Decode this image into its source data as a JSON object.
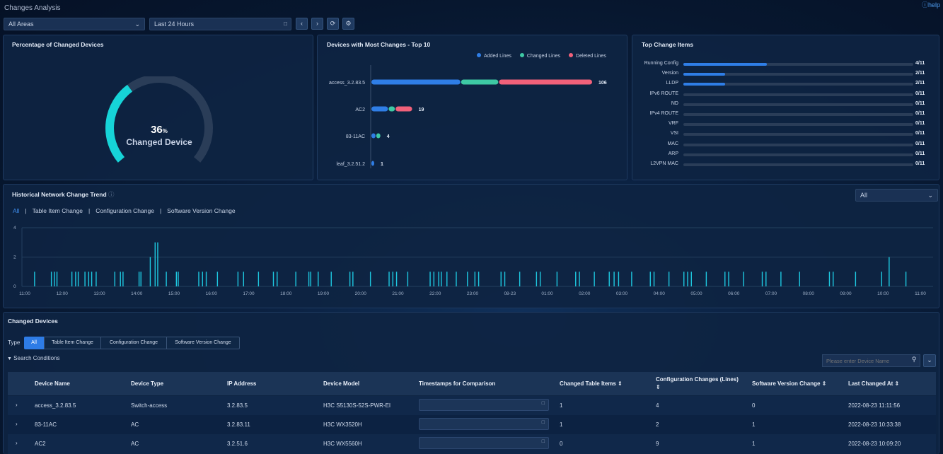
{
  "header": {
    "title": "Changes Analysis",
    "help_label": "help"
  },
  "filters": {
    "area": "All Areas",
    "range": "Last 24 Hours"
  },
  "panel_pct": {
    "title": "Percentage of Changed Devices",
    "value": "36",
    "unit": "%",
    "label": "Changed Device",
    "fraction": 0.36
  },
  "panel_top10": {
    "title": "Devices with Most Changes - Top 10",
    "legend": [
      "Added Lines",
      "Changed Lines",
      "Deleted Lines"
    ],
    "colors": [
      "#2f7ee6",
      "#3ec9a4",
      "#f1617a"
    ],
    "max": 106,
    "devices": [
      {
        "name": "access_3.2.83.5",
        "added": 43,
        "changed": 18,
        "deleted": 45,
        "total": "106"
      },
      {
        "name": "AC2",
        "added": 8,
        "changed": 3,
        "deleted": 8,
        "total": "19"
      },
      {
        "name": "83-11AC",
        "added": 2,
        "changed": 2,
        "deleted": 0,
        "total": "4"
      },
      {
        "name": "leaf_3.2.51.2",
        "added": 1,
        "changed": 0,
        "deleted": 0,
        "total": "1"
      }
    ]
  },
  "panel_items": {
    "title": "Top Change Items",
    "items": [
      {
        "name": "Running Config",
        "value": 4,
        "label": "4/11"
      },
      {
        "name": "Version",
        "value": 2,
        "label": "2/11"
      },
      {
        "name": "LLDP",
        "value": 2,
        "label": "2/11"
      },
      {
        "name": "IPv6 ROUTE",
        "value": 0,
        "label": "0/11"
      },
      {
        "name": "ND",
        "value": 0,
        "label": "0/11"
      },
      {
        "name": "IPv4 ROUTE",
        "value": 0,
        "label": "0/11"
      },
      {
        "name": "VRF",
        "value": 0,
        "label": "0/11"
      },
      {
        "name": "VSI",
        "value": 0,
        "label": "0/11"
      },
      {
        "name": "MAC",
        "value": 0,
        "label": "0/11"
      },
      {
        "name": "ARP",
        "value": 0,
        "label": "0/11"
      },
      {
        "name": "L2VPN MAC",
        "value": 0,
        "label": "0/11"
      }
    ]
  },
  "trend": {
    "title": "Historical Network Change Trend",
    "select": "All",
    "tabs": [
      "All",
      "Table Item Change",
      "Configuration Change",
      "Software Version Change"
    ]
  },
  "chart_data": {
    "type": "bar",
    "ylim": [
      0,
      4
    ],
    "y_ticks": [
      "0",
      "2",
      "4"
    ],
    "x_ticks": [
      "11:00",
      "12:00",
      "13:00",
      "14:00",
      "15:00",
      "16:00",
      "17:00",
      "18:00",
      "19:00",
      "20:00",
      "21:00",
      "22:00",
      "23:00",
      "08-23",
      "01:00",
      "02:00",
      "03:00",
      "04:00",
      "05:00",
      "06:00",
      "07:00",
      "08:00",
      "09:00",
      "10:00",
      "11:00"
    ],
    "bars": [
      {
        "t": 0.25,
        "v": 1
      },
      {
        "t": 0.7,
        "v": 1
      },
      {
        "t": 0.78,
        "v": 1
      },
      {
        "t": 0.85,
        "v": 1
      },
      {
        "t": 1.25,
        "v": 1
      },
      {
        "t": 1.35,
        "v": 1
      },
      {
        "t": 1.42,
        "v": 1
      },
      {
        "t": 1.6,
        "v": 1
      },
      {
        "t": 1.7,
        "v": 1
      },
      {
        "t": 1.78,
        "v": 1
      },
      {
        "t": 1.9,
        "v": 1
      },
      {
        "t": 2.4,
        "v": 1
      },
      {
        "t": 2.55,
        "v": 1
      },
      {
        "t": 2.62,
        "v": 1
      },
      {
        "t": 3.05,
        "v": 1
      },
      {
        "t": 3.1,
        "v": 1
      },
      {
        "t": 3.35,
        "v": 2
      },
      {
        "t": 3.48,
        "v": 3
      },
      {
        "t": 3.55,
        "v": 3
      },
      {
        "t": 3.78,
        "v": 1
      },
      {
        "t": 4.05,
        "v": 1
      },
      {
        "t": 4.1,
        "v": 1
      },
      {
        "t": 4.65,
        "v": 1
      },
      {
        "t": 4.75,
        "v": 1
      },
      {
        "t": 4.85,
        "v": 1
      },
      {
        "t": 5.15,
        "v": 1
      },
      {
        "t": 5.7,
        "v": 1
      },
      {
        "t": 5.85,
        "v": 1
      },
      {
        "t": 6.25,
        "v": 1
      },
      {
        "t": 6.65,
        "v": 1
      },
      {
        "t": 6.75,
        "v": 1
      },
      {
        "t": 7.25,
        "v": 1
      },
      {
        "t": 7.6,
        "v": 1
      },
      {
        "t": 7.65,
        "v": 1
      },
      {
        "t": 7.85,
        "v": 1
      },
      {
        "t": 8.2,
        "v": 1
      },
      {
        "t": 8.7,
        "v": 1
      },
      {
        "t": 8.78,
        "v": 1
      },
      {
        "t": 9.25,
        "v": 1
      },
      {
        "t": 9.75,
        "v": 1
      },
      {
        "t": 9.85,
        "v": 1
      },
      {
        "t": 9.95,
        "v": 1
      },
      {
        "t": 10.25,
        "v": 1
      },
      {
        "t": 10.85,
        "v": 1
      },
      {
        "t": 10.95,
        "v": 1
      },
      {
        "t": 11.08,
        "v": 1
      },
      {
        "t": 11.15,
        "v": 1
      },
      {
        "t": 11.3,
        "v": 1
      },
      {
        "t": 11.55,
        "v": 1
      },
      {
        "t": 11.85,
        "v": 1
      },
      {
        "t": 12.05,
        "v": 1
      },
      {
        "t": 12.15,
        "v": 1
      },
      {
        "t": 12.75,
        "v": 1
      },
      {
        "t": 12.85,
        "v": 1
      },
      {
        "t": 13.25,
        "v": 1
      },
      {
        "t": 13.7,
        "v": 1
      },
      {
        "t": 13.8,
        "v": 1
      },
      {
        "t": 14.25,
        "v": 1
      },
      {
        "t": 14.75,
        "v": 1
      },
      {
        "t": 14.85,
        "v": 1
      },
      {
        "t": 15.25,
        "v": 1
      },
      {
        "t": 15.65,
        "v": 1
      },
      {
        "t": 15.78,
        "v": 1
      },
      {
        "t": 15.9,
        "v": 1
      },
      {
        "t": 16.25,
        "v": 1
      },
      {
        "t": 16.75,
        "v": 1
      },
      {
        "t": 16.85,
        "v": 1
      },
      {
        "t": 17.25,
        "v": 1
      },
      {
        "t": 17.65,
        "v": 1
      },
      {
        "t": 17.75,
        "v": 1
      },
      {
        "t": 17.85,
        "v": 1
      },
      {
        "t": 18.25,
        "v": 1
      },
      {
        "t": 18.75,
        "v": 1
      },
      {
        "t": 18.85,
        "v": 1
      },
      {
        "t": 19.25,
        "v": 1
      },
      {
        "t": 19.75,
        "v": 1
      },
      {
        "t": 19.85,
        "v": 1
      },
      {
        "t": 20.25,
        "v": 1
      },
      {
        "t": 20.75,
        "v": 1
      },
      {
        "t": 21.55,
        "v": 1
      },
      {
        "t": 21.65,
        "v": 1
      },
      {
        "t": 22.25,
        "v": 1
      },
      {
        "t": 22.95,
        "v": 1
      },
      {
        "t": 23.15,
        "v": 2
      },
      {
        "t": 23.6,
        "v": 1
      }
    ]
  },
  "changed": {
    "title": "Changed Devices",
    "type_label": "Type",
    "type_tabs": [
      "All",
      "Table Item Change",
      "Configuration Change",
      "Software Version Change"
    ],
    "search_label": "Search Conditions",
    "search_placeholder": "Please enter Device Name",
    "columns": [
      "Device Name",
      "Device Type",
      "IP Address",
      "Device Model",
      "Timestamps for Comparison",
      "Changed Table Items",
      "Configuration Changes (Lines)",
      "Software Version Change",
      "Last Changed At"
    ],
    "rows": [
      {
        "name": "access_3.2.83.5",
        "type": "Switch-access",
        "ip": "3.2.83.5",
        "model": "H3C S5130S-52S-PWR-EI",
        "table_items": "1",
        "config": "4",
        "software": "0",
        "last": "2022-08-23 11:11:56"
      },
      {
        "name": "83-11AC",
        "type": "AC",
        "ip": "3.2.83.11",
        "model": "H3C WX3520H",
        "table_items": "1",
        "config": "2",
        "software": "1",
        "last": "2022-08-23 10:33:38"
      },
      {
        "name": "AC2",
        "type": "AC",
        "ip": "3.2.51.6",
        "model": "H3C WX5560H",
        "table_items": "0",
        "config": "9",
        "software": "1",
        "last": "2022-08-23 10:09:20"
      }
    ]
  }
}
